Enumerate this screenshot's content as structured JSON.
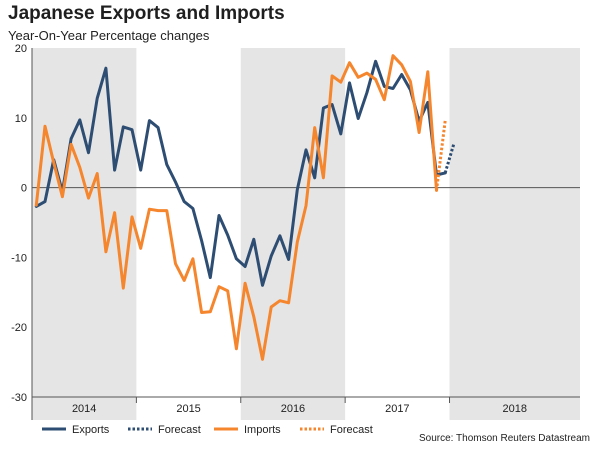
{
  "chart_data": {
    "type": "line",
    "title": "Japanese Exports and Imports",
    "subtitle": "Year-On-Year Percentage changes",
    "source": "Source: Thomson Reuters Datastream",
    "ylim": [
      -30,
      20
    ],
    "yticks": [
      -30,
      -20,
      -10,
      0,
      10,
      20
    ],
    "x_start": "2014-01",
    "x_months": 63,
    "years": [
      {
        "label": "2014",
        "start": 0,
        "shaded": true
      },
      {
        "label": "2015",
        "start": 12,
        "shaded": false
      },
      {
        "label": "2016",
        "start": 24,
        "shaded": true
      },
      {
        "label": "2017",
        "start": 36,
        "shaded": false
      },
      {
        "label": "2018",
        "start": 48,
        "shaded": true
      }
    ],
    "series": [
      {
        "name": "Exports",
        "color": "#2e4d73",
        "style": "solid",
        "values": [
          -2.7,
          -2.0,
          4.0,
          -0.6,
          7.0,
          9.7,
          5.0,
          12.8,
          17.1,
          2.5,
          8.7,
          8.3,
          2.5,
          9.6,
          8.6,
          3.3,
          0.8,
          -2.0,
          -3.0,
          -7.6,
          -12.9,
          -4.0,
          -6.8,
          -10.2,
          -11.3,
          -7.4,
          -14.0,
          -9.8,
          -6.9,
          -10.3,
          -0.3,
          5.4,
          1.4,
          11.4,
          11.9,
          7.7,
          15.0,
          9.9,
          13.6,
          18.1,
          14.5,
          14.2,
          16.2,
          14.0,
          9.5,
          12.2,
          1.8,
          2.1
        ]
      },
      {
        "name": "Forecast",
        "color": "#2e4d73",
        "style": "dotted",
        "start": 47,
        "values": [
          2.1,
          6.3
        ]
      },
      {
        "name": "Imports",
        "color": "#f5862d",
        "style": "solid",
        "values": [
          -2.5,
          8.8,
          3.6,
          -1.3,
          6.2,
          2.9,
          -1.5,
          2.0,
          -9.2,
          -3.6,
          -14.4,
          -4.2,
          -8.7,
          -3.1,
          -3.3,
          -3.3,
          -10.9,
          -13.3,
          -10.2,
          -17.9,
          -17.8,
          -14.2,
          -14.8,
          -23.1,
          -13.7,
          -18.5,
          -24.6,
          -17.1,
          -16.2,
          -16.5,
          -7.8,
          -2.6,
          8.6,
          1.4,
          16.0,
          15.1,
          17.9,
          15.8,
          16.4,
          15.5,
          12.6,
          18.9,
          17.6,
          15.2,
          7.9,
          16.6,
          -0.4
        ]
      },
      {
        "name": "Forecast",
        "color": "#f5862d",
        "style": "dotted",
        "start": 46,
        "values": [
          -0.4,
          9.6
        ]
      }
    ],
    "legend": [
      {
        "label": "Exports",
        "color": "#2e4d73",
        "style": "solid"
      },
      {
        "label": "Forecast",
        "color": "#2e4d73",
        "style": "dotted"
      },
      {
        "label": "Imports",
        "color": "#f5862d",
        "style": "solid"
      },
      {
        "label": "Forecast",
        "color": "#f5862d",
        "style": "dotted"
      }
    ],
    "legend_position": "bottom-left",
    "zero_line": true,
    "grid": false
  }
}
